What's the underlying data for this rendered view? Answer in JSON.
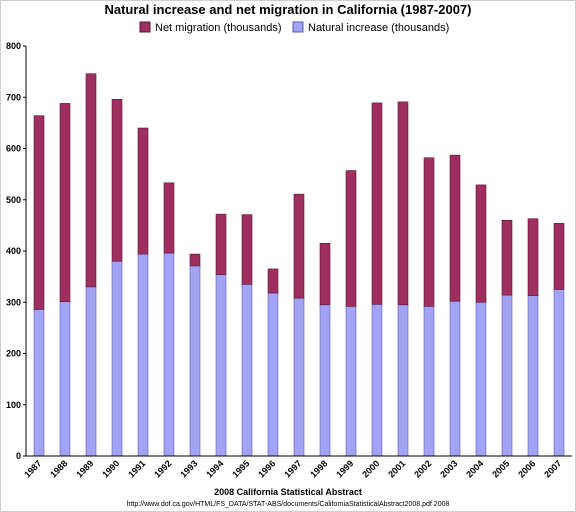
{
  "chart_data": {
    "type": "bar",
    "stacked": true,
    "title": "Natural increase and net migration in California (1987-2007)",
    "xlabel": "2008 California Statistical Abstract",
    "source_note": "http://www.dof.ca.gov/HTML/FS_DATA/STAT-ABS/documents/CaliforniaStatisticalAbstract2008.pdf 2008",
    "ylim": [
      0,
      800
    ],
    "yticks": [
      0,
      100,
      200,
      300,
      400,
      500,
      600,
      700,
      800
    ],
    "grid": false,
    "legend_position": "top",
    "categories": [
      "1987",
      "1988",
      "1989",
      "1990",
      "1991",
      "1992",
      "1993",
      "1994",
      "1995",
      "1996",
      "1997",
      "1998",
      "1999",
      "2000",
      "2001",
      "2002",
      "2003",
      "2004",
      "2005",
      "2006",
      "2007"
    ],
    "series": [
      {
        "name": "Natural increase (thousands)",
        "color": "#a3a3f5",
        "values": [
          286,
          301,
          330,
          380,
          394,
          396,
          371,
          354,
          335,
          318,
          308,
          295,
          292,
          296,
          295,
          292,
          302,
          300,
          314,
          313,
          325
        ]
      },
      {
        "name": "Net migration (thousands)",
        "color": "#9e2f5f",
        "values": [
          378,
          387,
          416,
          316,
          246,
          137,
          23,
          118,
          136,
          47,
          203,
          120,
          265,
          393,
          396,
          290,
          285,
          229,
          146,
          150,
          129
        ]
      }
    ]
  }
}
